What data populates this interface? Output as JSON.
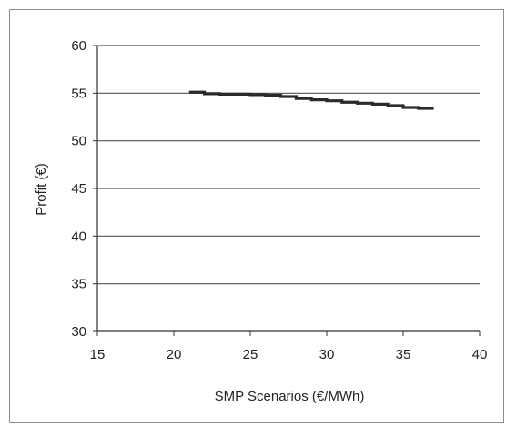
{
  "chart_data": {
    "type": "line",
    "title": "",
    "xlabel": "SMP Scenarios (€/MWh)",
    "ylabel": "Profit (€)",
    "xlim": [
      15,
      40
    ],
    "ylim": [
      30,
      60
    ],
    "x_ticks": [
      15,
      20,
      25,
      30,
      35,
      40
    ],
    "y_ticks": [
      30,
      35,
      40,
      45,
      50,
      55,
      60
    ],
    "grid": "horizontal",
    "legend": "none",
    "colors": {
      "line": "#2a2a2a",
      "grid": "#555555",
      "axis": "#333333"
    },
    "series": [
      {
        "x": [
          21,
          22,
          23,
          24,
          25,
          26,
          27,
          28,
          29,
          30,
          31,
          32,
          33,
          34,
          35,
          36
        ],
        "values": [
          55.1,
          54.95,
          54.9,
          54.9,
          54.85,
          54.8,
          54.65,
          54.45,
          54.3,
          54.2,
          54.05,
          53.95,
          53.85,
          53.7,
          53.5,
          53.4
        ]
      }
    ]
  }
}
